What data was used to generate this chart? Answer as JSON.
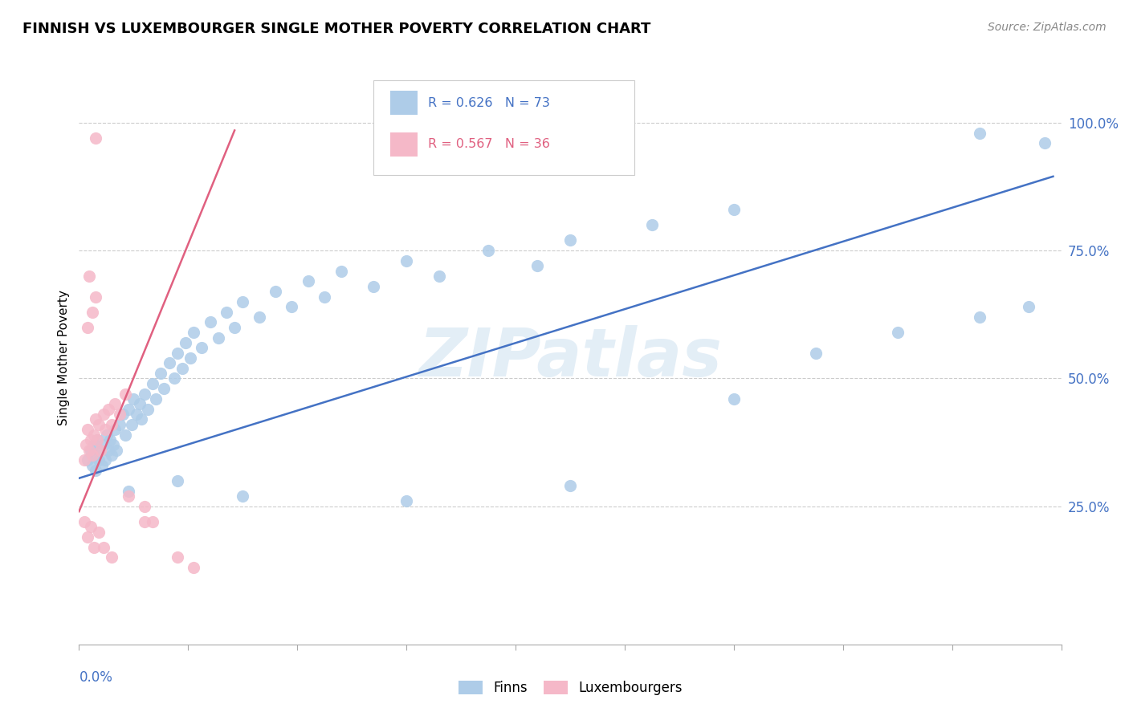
{
  "title": "FINNISH VS LUXEMBOURGER SINGLE MOTHER POVERTY CORRELATION CHART",
  "source": "Source: ZipAtlas.com",
  "ylabel": "Single Mother Poverty",
  "right_yticks": [
    0.25,
    0.5,
    0.75,
    1.0
  ],
  "right_yticklabels": [
    "25.0%",
    "50.0%",
    "75.0%",
    "100.0%"
  ],
  "xlim": [
    0.0,
    0.6
  ],
  "ylim": [
    -0.02,
    1.1
  ],
  "watermark": "ZIPatlas",
  "legend_blue_r": "R = 0.626",
  "legend_blue_n": "N = 73",
  "legend_pink_r": "R = 0.567",
  "legend_pink_n": "N = 36",
  "blue_color": "#aecce8",
  "pink_color": "#f5b8c8",
  "blue_line_color": "#4472c4",
  "pink_line_color": "#e06080",
  "blue_scatter": [
    [
      0.005,
      0.34
    ],
    [
      0.007,
      0.36
    ],
    [
      0.008,
      0.33
    ],
    [
      0.009,
      0.37
    ],
    [
      0.01,
      0.35
    ],
    [
      0.01,
      0.32
    ],
    [
      0.011,
      0.38
    ],
    [
      0.012,
      0.34
    ],
    [
      0.013,
      0.36
    ],
    [
      0.014,
      0.33
    ],
    [
      0.015,
      0.37
    ],
    [
      0.016,
      0.34
    ],
    [
      0.017,
      0.39
    ],
    [
      0.018,
      0.36
    ],
    [
      0.019,
      0.38
    ],
    [
      0.02,
      0.35
    ],
    [
      0.021,
      0.37
    ],
    [
      0.022,
      0.4
    ],
    [
      0.023,
      0.36
    ],
    [
      0.025,
      0.41
    ],
    [
      0.027,
      0.43
    ],
    [
      0.028,
      0.39
    ],
    [
      0.03,
      0.44
    ],
    [
      0.032,
      0.41
    ],
    [
      0.033,
      0.46
    ],
    [
      0.035,
      0.43
    ],
    [
      0.037,
      0.45
    ],
    [
      0.038,
      0.42
    ],
    [
      0.04,
      0.47
    ],
    [
      0.042,
      0.44
    ],
    [
      0.045,
      0.49
    ],
    [
      0.047,
      0.46
    ],
    [
      0.05,
      0.51
    ],
    [
      0.052,
      0.48
    ],
    [
      0.055,
      0.53
    ],
    [
      0.058,
      0.5
    ],
    [
      0.06,
      0.55
    ],
    [
      0.063,
      0.52
    ],
    [
      0.065,
      0.57
    ],
    [
      0.068,
      0.54
    ],
    [
      0.07,
      0.59
    ],
    [
      0.075,
      0.56
    ],
    [
      0.08,
      0.61
    ],
    [
      0.085,
      0.58
    ],
    [
      0.09,
      0.63
    ],
    [
      0.095,
      0.6
    ],
    [
      0.1,
      0.65
    ],
    [
      0.11,
      0.62
    ],
    [
      0.12,
      0.67
    ],
    [
      0.13,
      0.64
    ],
    [
      0.14,
      0.69
    ],
    [
      0.15,
      0.66
    ],
    [
      0.16,
      0.71
    ],
    [
      0.18,
      0.68
    ],
    [
      0.2,
      0.73
    ],
    [
      0.22,
      0.7
    ],
    [
      0.25,
      0.75
    ],
    [
      0.28,
      0.72
    ],
    [
      0.3,
      0.77
    ],
    [
      0.35,
      0.8
    ],
    [
      0.4,
      0.83
    ],
    [
      0.03,
      0.28
    ],
    [
      0.06,
      0.3
    ],
    [
      0.1,
      0.27
    ],
    [
      0.2,
      0.26
    ],
    [
      0.3,
      0.29
    ],
    [
      0.4,
      0.46
    ],
    [
      0.45,
      0.55
    ],
    [
      0.5,
      0.59
    ],
    [
      0.55,
      0.62
    ],
    [
      0.58,
      0.64
    ],
    [
      0.55,
      0.98
    ],
    [
      0.59,
      0.96
    ]
  ],
  "pink_scatter": [
    [
      0.003,
      0.34
    ],
    [
      0.004,
      0.37
    ],
    [
      0.005,
      0.4
    ],
    [
      0.006,
      0.36
    ],
    [
      0.007,
      0.38
    ],
    [
      0.008,
      0.35
    ],
    [
      0.009,
      0.39
    ],
    [
      0.01,
      0.42
    ],
    [
      0.011,
      0.38
    ],
    [
      0.012,
      0.41
    ],
    [
      0.013,
      0.36
    ],
    [
      0.015,
      0.43
    ],
    [
      0.016,
      0.4
    ],
    [
      0.018,
      0.44
    ],
    [
      0.02,
      0.41
    ],
    [
      0.022,
      0.45
    ],
    [
      0.025,
      0.43
    ],
    [
      0.028,
      0.47
    ],
    [
      0.005,
      0.6
    ],
    [
      0.008,
      0.63
    ],
    [
      0.01,
      0.66
    ],
    [
      0.006,
      0.7
    ],
    [
      0.01,
      0.97
    ],
    [
      0.003,
      0.22
    ],
    [
      0.005,
      0.19
    ],
    [
      0.007,
      0.21
    ],
    [
      0.009,
      0.17
    ],
    [
      0.012,
      0.2
    ],
    [
      0.015,
      0.17
    ],
    [
      0.02,
      0.15
    ],
    [
      0.03,
      0.27
    ],
    [
      0.04,
      0.25
    ],
    [
      0.04,
      0.22
    ],
    [
      0.045,
      0.22
    ],
    [
      0.06,
      0.15
    ],
    [
      0.07,
      0.13
    ]
  ],
  "blue_line": {
    "x0": 0.0,
    "x1": 0.595,
    "y0": 0.305,
    "y1": 0.895
  },
  "pink_line": {
    "x0": 0.0,
    "x1": 0.095,
    "y0": 0.24,
    "y1": 0.985
  }
}
